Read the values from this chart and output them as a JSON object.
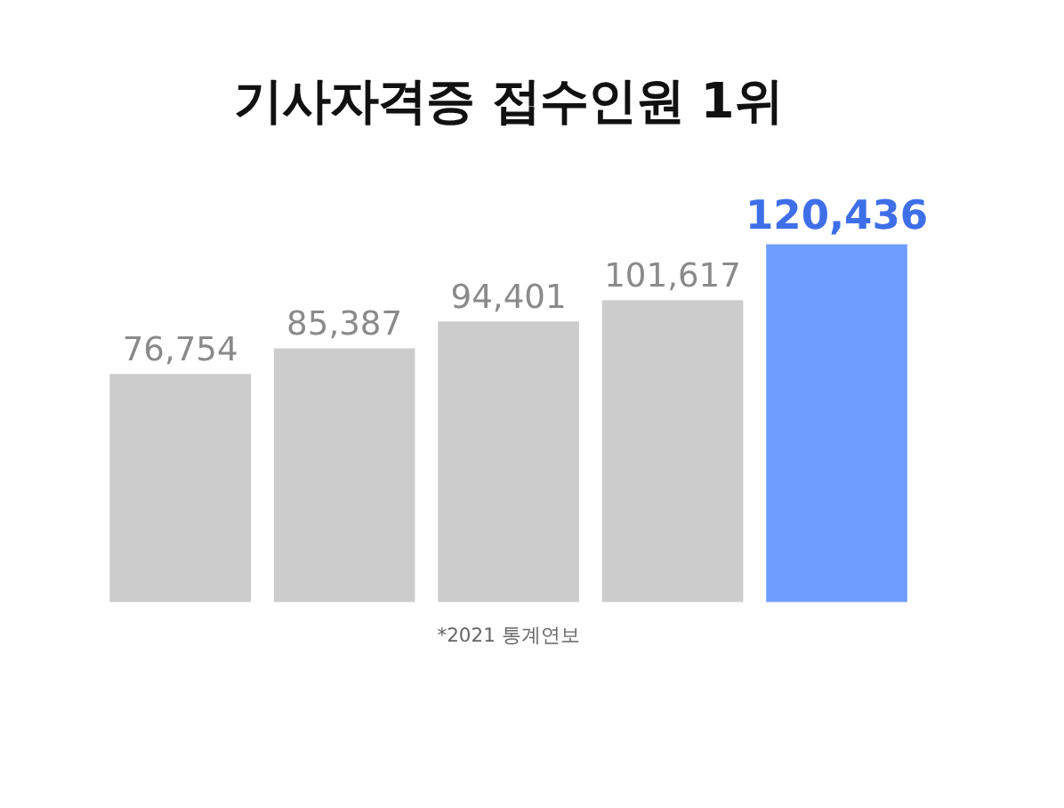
{
  "chart_data": {
    "type": "bar",
    "title": "기사자격증 접수인원 1위",
    "categories": [
      null,
      null,
      null,
      null,
      null
    ],
    "values": [
      76754,
      85387,
      94401,
      101617,
      120436
    ],
    "colors": [
      "#cccccc",
      "#cccccc",
      "#cccccc",
      "#cccccc",
      "#6d9eff"
    ],
    "value_labels": [
      "76,754",
      "85,387",
      "94,401",
      "101,617",
      "120,436"
    ],
    "annotations": [
      "*2021 통계연보"
    ]
  }
}
